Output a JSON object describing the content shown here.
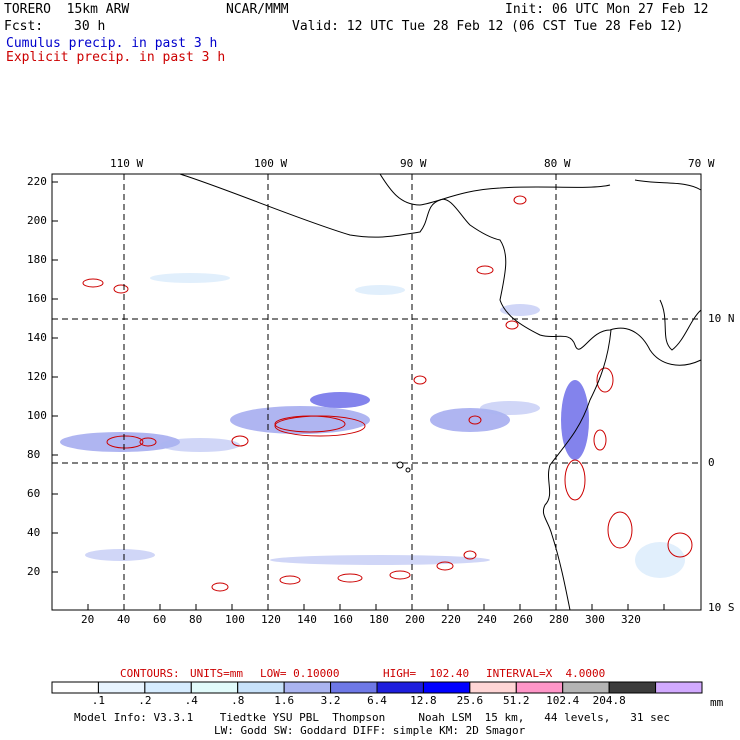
{
  "header": {
    "model": "TORERO  15km ARW",
    "org": "NCAR/MMM",
    "init": "Init: 06 UTC Mon 27 Feb 12",
    "fcst_label": "Fcst:",
    "fcst_value": "30 h",
    "valid": "Valid: 12 UTC Tue 28 Feb 12 (06 CST Tue 28 Feb 12)",
    "legend_cumulus": "Cumulus precip. in past 3 h",
    "legend_explicit": "Explicit precip. in past 3 h"
  },
  "colors": {
    "cumulus": "#0000cc",
    "explicit": "#cc0000",
    "grid": "#000000",
    "coast": "#000000"
  },
  "map": {
    "top_lon_labels": [
      "110 W",
      "100 W",
      "90 W",
      "80 W",
      "70 W"
    ],
    "right_lat_labels": [
      "10 N",
      "0",
      "10 S"
    ],
    "x_ticks": [
      "20",
      "40",
      "60",
      "80",
      "100",
      "120",
      "140",
      "160",
      "180",
      "200",
      "220",
      "240",
      "260",
      "280",
      "300",
      "320"
    ],
    "y_ticks": [
      "20",
      "40",
      "60",
      "80",
      "100",
      "120",
      "140",
      "160",
      "180",
      "200",
      "220"
    ]
  },
  "contours_line": {
    "contours": "CONTOURS:",
    "units": "UNITS=mm",
    "low": "LOW= 0.10000",
    "high": "HIGH=  102.40",
    "interval": "INTERVAL=X  4.0000"
  },
  "colorbar": {
    "labels": [
      ".1",
      ".2",
      ".4",
      ".8",
      "1.6",
      "3.2",
      "6.4",
      "12.8",
      "25.6",
      "51.2",
      "102.4",
      "204.8"
    ],
    "unit": "mm",
    "colors": [
      "#ffffff",
      "#e8f4ff",
      "#d6ecff",
      "#e2fbfb",
      "#c8e2fa",
      "#aab4f0",
      "#6e78e6",
      "#1e1edc",
      "#0000ff",
      "#ffd6d6",
      "#ff96c8",
      "#b4b4b4",
      "#3c3c3c",
      "#d2aaff"
    ]
  },
  "footer": {
    "line1": "Model Info: V3.3.1    Tiedtke YSU PBL  Thompson     Noah LSM  15 km,   44 levels,   31 sec",
    "line2": "LW: Godd SW: Goddard DIFF: simple KM: 2D Smagor"
  }
}
